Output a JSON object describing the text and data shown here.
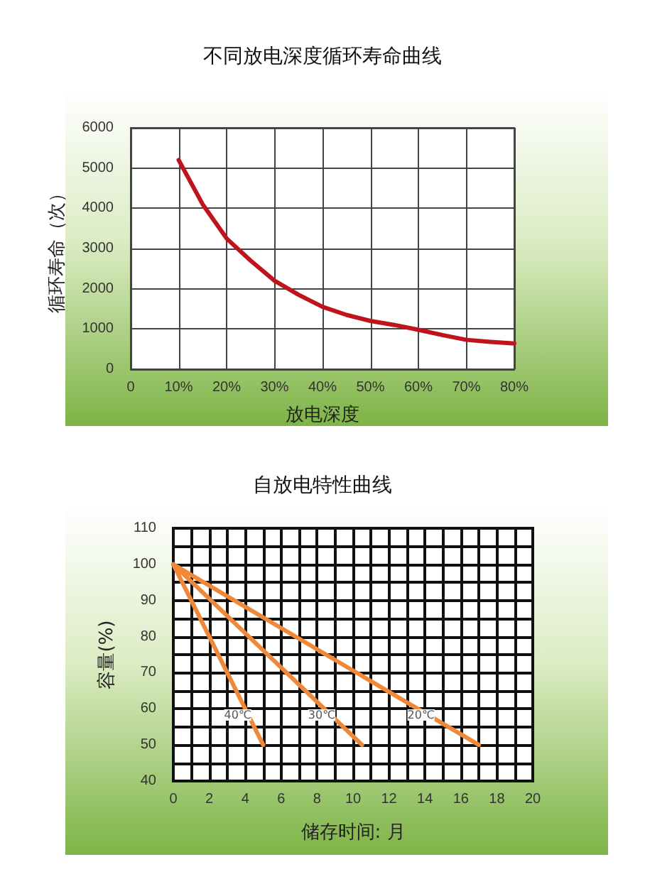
{
  "chart_data": [
    {
      "type": "line",
      "title": "不同放电深度循环寿命曲线",
      "xlabel": "放电深度",
      "ylabel": "循环寿命（次）",
      "xlim": [
        0,
        80
      ],
      "xticks": [
        {
          "value": 0,
          "label": "0"
        },
        {
          "value": 10,
          "label": "10%"
        },
        {
          "value": 20,
          "label": "20%"
        },
        {
          "value": 30,
          "label": "30%"
        },
        {
          "value": 40,
          "label": "40%"
        },
        {
          "value": 50,
          "label": "50%"
        },
        {
          "value": 60,
          "label": "60%"
        },
        {
          "value": 70,
          "label": "70%"
        },
        {
          "value": 80,
          "label": "80%"
        }
      ],
      "ylim": [
        0,
        6000
      ],
      "yticks": [
        0,
        1000,
        2000,
        3000,
        4000,
        5000,
        6000
      ],
      "grid": true,
      "marker": "none",
      "series": [
        {
          "color": "#c0141c",
          "x": [
            10,
            15,
            20,
            25,
            30,
            35,
            40,
            45,
            50,
            55,
            60,
            65,
            70,
            75,
            80
          ],
          "values": [
            5200,
            4100,
            3250,
            2700,
            2200,
            1850,
            1550,
            1350,
            1200,
            1100,
            980,
            850,
            730,
            680,
            640
          ]
        }
      ]
    },
    {
      "type": "line",
      "title": "自放电特性曲线",
      "xlabel": "储存时间: 月",
      "ylabel": "容量(%)",
      "xlim": [
        0,
        20
      ],
      "xticks": [
        0,
        2,
        4,
        6,
        8,
        10,
        12,
        14,
        16,
        18,
        20
      ],
      "ylim": [
        40,
        110
      ],
      "yticks": [
        40,
        50,
        60,
        70,
        80,
        90,
        100,
        110
      ],
      "grid": true,
      "marker": "none",
      "series": [
        {
          "name": "40℃",
          "color": "#f0883a",
          "x": [
            0,
            5
          ],
          "values": [
            100,
            50
          ]
        },
        {
          "name": "30℃",
          "color": "#f0883a",
          "x": [
            0,
            10.5
          ],
          "values": [
            100,
            50
          ]
        },
        {
          "name": "20℃",
          "color": "#f0883a",
          "x": [
            0,
            17
          ],
          "values": [
            100,
            50
          ]
        }
      ]
    }
  ]
}
